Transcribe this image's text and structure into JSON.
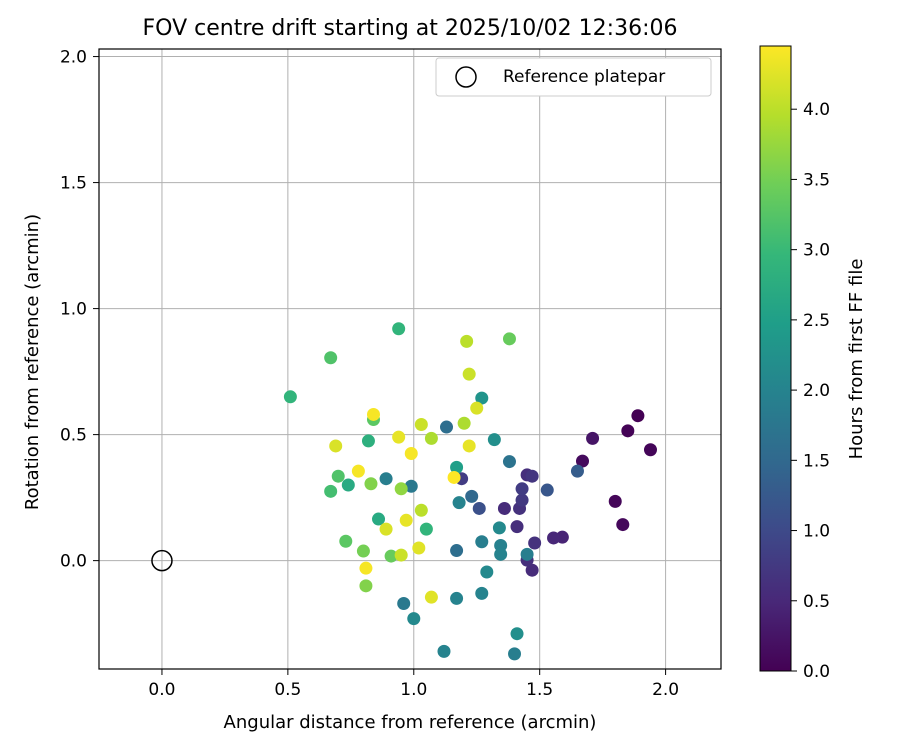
{
  "chart_data": {
    "type": "scatter",
    "title": "FOV centre drift starting at 2025/10/02 12:36:06",
    "xlabel": "Angular distance from reference (arcmin)",
    "ylabel": "Rotation from reference (arcmin)",
    "xlim": [
      -0.25,
      2.22
    ],
    "ylim": [
      -0.43,
      2.03
    ],
    "xticks": [
      0.0,
      0.5,
      1.0,
      1.5,
      2.0
    ],
    "xtick_labels": [
      "0.0",
      "0.5",
      "1.0",
      "1.5",
      "2.0"
    ],
    "yticks": [
      0.0,
      0.5,
      1.0,
      1.5,
      2.0
    ],
    "ytick_labels": [
      "0.0",
      "0.5",
      "1.0",
      "1.5",
      "2.0"
    ],
    "grid": true,
    "legend": {
      "position": "top-right",
      "entries": [
        "Reference platepar"
      ]
    },
    "reference_point": {
      "x": 0.0,
      "y": 0.0,
      "label": "Reference platepar"
    },
    "colorbar": {
      "label": "Hours from first FF file",
      "min": 0.0,
      "max": 4.45,
      "ticks": [
        0.0,
        0.5,
        1.0,
        1.5,
        2.0,
        2.5,
        3.0,
        3.5,
        4.0
      ],
      "tick_labels": [
        "0.0",
        "0.5",
        "1.0",
        "1.5",
        "2.0",
        "2.5",
        "3.0",
        "3.5",
        "4.0"
      ],
      "colormap": [
        "#440154",
        "#482878",
        "#3e4989",
        "#31688e",
        "#26828e",
        "#1f9e89",
        "#35b779",
        "#6ece58",
        "#b5de2b",
        "#fde725"
      ]
    },
    "points": [
      {
        "x": 1.89,
        "y": 0.575,
        "t": 0.0
      },
      {
        "x": 1.85,
        "y": 0.515,
        "t": 0.03
      },
      {
        "x": 1.94,
        "y": 0.44,
        "t": 0.05
      },
      {
        "x": 1.8,
        "y": 0.235,
        "t": 0.07
      },
      {
        "x": 1.83,
        "y": 0.143,
        "t": 0.09
      },
      {
        "x": 1.67,
        "y": 0.395,
        "t": 0.12
      },
      {
        "x": 1.71,
        "y": 0.485,
        "t": 0.25
      },
      {
        "x": 1.59,
        "y": 0.093,
        "t": 0.45
      },
      {
        "x": 1.555,
        "y": 0.09,
        "t": 0.5
      },
      {
        "x": 1.47,
        "y": -0.038,
        "t": 0.55
      },
      {
        "x": 1.45,
        "y": 0.002,
        "t": 0.6
      },
      {
        "x": 1.48,
        "y": 0.07,
        "t": 0.65
      },
      {
        "x": 1.41,
        "y": 0.135,
        "t": 0.6
      },
      {
        "x": 1.36,
        "y": 0.207,
        "t": 0.55
      },
      {
        "x": 1.42,
        "y": 0.207,
        "t": 0.65
      },
      {
        "x": 1.45,
        "y": 0.34,
        "t": 0.6
      },
      {
        "x": 1.47,
        "y": 0.335,
        "t": 0.7
      },
      {
        "x": 1.43,
        "y": 0.24,
        "t": 0.75
      },
      {
        "x": 1.43,
        "y": 0.285,
        "t": 0.8
      },
      {
        "x": 1.19,
        "y": 0.325,
        "t": 0.8
      },
      {
        "x": 1.26,
        "y": 0.207,
        "t": 1.1
      },
      {
        "x": 1.53,
        "y": 0.28,
        "t": 1.2
      },
      {
        "x": 1.65,
        "y": 0.355,
        "t": 1.3
      },
      {
        "x": 1.38,
        "y": 0.393,
        "t": 1.7
      },
      {
        "x": 1.23,
        "y": 0.255,
        "t": 1.5
      },
      {
        "x": 1.17,
        "y": 0.04,
        "t": 1.6
      },
      {
        "x": 1.27,
        "y": 0.075,
        "t": 1.9
      },
      {
        "x": 1.345,
        "y": 0.06,
        "t": 1.95
      },
      {
        "x": 1.345,
        "y": 0.025,
        "t": 2.0
      },
      {
        "x": 1.45,
        "y": 0.025,
        "t": 1.9
      },
      {
        "x": 1.34,
        "y": 0.13,
        "t": 2.1
      },
      {
        "x": 1.18,
        "y": 0.23,
        "t": 2.0
      },
      {
        "x": 1.29,
        "y": -0.045,
        "t": 2.1
      },
      {
        "x": 1.27,
        "y": -0.13,
        "t": 2.0
      },
      {
        "x": 1.17,
        "y": -0.15,
        "t": 2.0
      },
      {
        "x": 0.96,
        "y": -0.17,
        "t": 1.8
      },
      {
        "x": 1.0,
        "y": -0.23,
        "t": 2.1
      },
      {
        "x": 1.12,
        "y": -0.36,
        "t": 2.0
      },
      {
        "x": 1.4,
        "y": -0.37,
        "t": 1.9
      },
      {
        "x": 1.41,
        "y": -0.29,
        "t": 2.2
      },
      {
        "x": 1.32,
        "y": 0.48,
        "t": 2.2
      },
      {
        "x": 1.13,
        "y": 0.53,
        "t": 1.6
      },
      {
        "x": 1.27,
        "y": 0.645,
        "t": 2.3
      },
      {
        "x": 0.99,
        "y": 0.295,
        "t": 1.8
      },
      {
        "x": 0.89,
        "y": 0.325,
        "t": 1.9
      },
      {
        "x": 1.17,
        "y": 0.37,
        "t": 2.5
      },
      {
        "x": 0.86,
        "y": 0.165,
        "t": 2.7
      },
      {
        "x": 1.05,
        "y": 0.125,
        "t": 2.9
      },
      {
        "x": 0.74,
        "y": 0.3,
        "t": 2.7
      },
      {
        "x": 0.82,
        "y": 0.475,
        "t": 2.8
      },
      {
        "x": 0.94,
        "y": 0.92,
        "t": 2.9
      },
      {
        "x": 0.51,
        "y": 0.65,
        "t": 2.9
      },
      {
        "x": 0.67,
        "y": 0.275,
        "t": 3.1
      },
      {
        "x": 0.7,
        "y": 0.335,
        "t": 3.2
      },
      {
        "x": 0.73,
        "y": 0.077,
        "t": 3.3
      },
      {
        "x": 0.8,
        "y": 0.038,
        "t": 3.5
      },
      {
        "x": 0.91,
        "y": 0.018,
        "t": 3.4
      },
      {
        "x": 0.81,
        "y": -0.1,
        "t": 3.6
      },
      {
        "x": 0.83,
        "y": 0.305,
        "t": 3.6
      },
      {
        "x": 0.84,
        "y": 0.56,
        "t": 3.3
      },
      {
        "x": 0.95,
        "y": 0.285,
        "t": 3.7
      },
      {
        "x": 0.67,
        "y": 0.805,
        "t": 3.2
      },
      {
        "x": 1.38,
        "y": 0.88,
        "t": 3.4
      },
      {
        "x": 1.21,
        "y": 0.87,
        "t": 4.0
      },
      {
        "x": 1.22,
        "y": 0.74,
        "t": 4.1
      },
      {
        "x": 1.25,
        "y": 0.605,
        "t": 4.2
      },
      {
        "x": 1.2,
        "y": 0.545,
        "t": 3.9
      },
      {
        "x": 1.22,
        "y": 0.455,
        "t": 4.3
      },
      {
        "x": 1.07,
        "y": 0.485,
        "t": 3.9
      },
      {
        "x": 1.03,
        "y": 0.54,
        "t": 4.1
      },
      {
        "x": 0.94,
        "y": 0.49,
        "t": 4.3
      },
      {
        "x": 0.99,
        "y": 0.425,
        "t": 4.4
      },
      {
        "x": 0.69,
        "y": 0.455,
        "t": 4.2
      },
      {
        "x": 0.84,
        "y": 0.58,
        "t": 4.4
      },
      {
        "x": 0.78,
        "y": 0.355,
        "t": 4.4
      },
      {
        "x": 0.89,
        "y": 0.125,
        "t": 4.2
      },
      {
        "x": 0.97,
        "y": 0.16,
        "t": 4.3
      },
      {
        "x": 1.03,
        "y": 0.2,
        "t": 4.0
      },
      {
        "x": 0.95,
        "y": 0.022,
        "t": 4.1
      },
      {
        "x": 1.02,
        "y": 0.05,
        "t": 4.25
      },
      {
        "x": 0.81,
        "y": -0.03,
        "t": 4.4
      },
      {
        "x": 1.07,
        "y": -0.145,
        "t": 4.25
      },
      {
        "x": 1.16,
        "y": 0.33,
        "t": 4.45
      }
    ]
  }
}
